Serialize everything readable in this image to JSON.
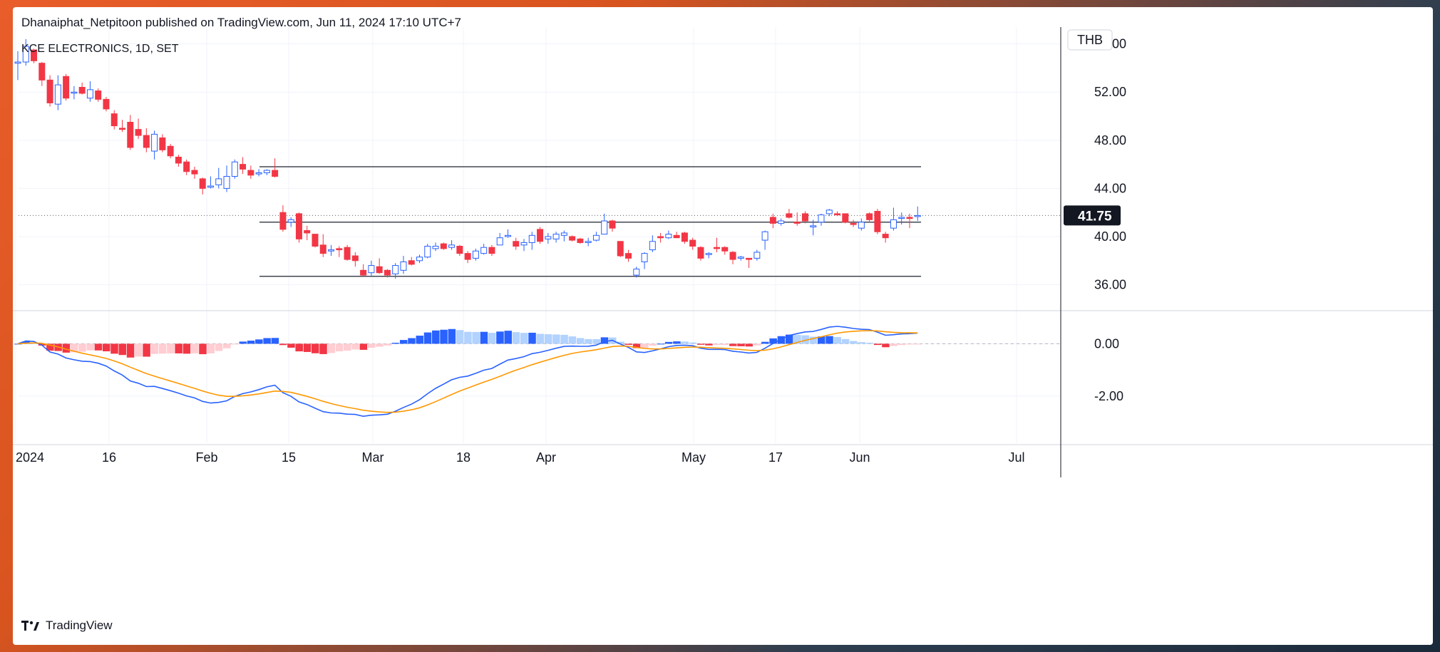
{
  "header": {
    "published_line": "Dhanaiphat_Netpitoon published on TradingView.com, Jun 11, 2024 17:10 UTC+7",
    "symbol_line": "KCE ELECTRONICS, 1D, SET"
  },
  "footer": {
    "brand": "TradingView",
    "logo_text": "17"
  },
  "chart_data": {
    "type": "candlestick",
    "symbol": "KCE ELECTRONICS",
    "interval": "1D",
    "exchange": "SET",
    "currency": "THB",
    "last_price": "41.75",
    "price_axis": {
      "ticks": [
        "56.00",
        "52.00",
        "48.00",
        "44.00",
        "40.00",
        "36.00"
      ],
      "range": [
        34.2,
        57.4
      ]
    },
    "x_axis": {
      "labels": [
        "2024",
        "16",
        "Feb",
        "15",
        "Mar",
        "18",
        "Apr",
        "May",
        "17",
        "Jun",
        "Jul"
      ]
    },
    "candles": [
      [
        54.4,
        55.4,
        53.0,
        54.5
      ],
      [
        54.5,
        56.4,
        54.2,
        55.8
      ],
      [
        55.5,
        55.6,
        54.4,
        54.6
      ],
      [
        54.4,
        54.5,
        52.5,
        53.0
      ],
      [
        53.0,
        53.4,
        50.8,
        51.1
      ],
      [
        51.0,
        53.4,
        50.5,
        52.6
      ],
      [
        53.3,
        53.5,
        51.3,
        51.5
      ],
      [
        52.0,
        52.5,
        51.4,
        52.0
      ],
      [
        52.4,
        52.8,
        51.8,
        51.9
      ],
      [
        51.5,
        52.9,
        51.2,
        52.2
      ],
      [
        52.1,
        52.3,
        51.2,
        51.4
      ],
      [
        51.4,
        51.6,
        50.4,
        50.6
      ],
      [
        50.2,
        50.5,
        48.9,
        49.2
      ],
      [
        49.0,
        49.7,
        48.7,
        48.9
      ],
      [
        49.5,
        50.1,
        47.2,
        47.4
      ],
      [
        48.9,
        49.8,
        48.1,
        48.4
      ],
      [
        48.4,
        49.0,
        47.0,
        47.4
      ],
      [
        47.1,
        48.8,
        46.4,
        48.5
      ],
      [
        48.2,
        48.5,
        47.0,
        47.2
      ],
      [
        47.5,
        47.7,
        46.5,
        46.7
      ],
      [
        46.6,
        46.8,
        45.8,
        46.1
      ],
      [
        46.2,
        46.4,
        45.1,
        45.4
      ],
      [
        45.5,
        45.8,
        44.8,
        45.2
      ],
      [
        44.8,
        44.9,
        43.5,
        44.0
      ],
      [
        44.1,
        45.0,
        44.0,
        44.2
      ],
      [
        44.3,
        45.7,
        44.0,
        44.8
      ],
      [
        44.0,
        45.9,
        43.7,
        45.0
      ],
      [
        45.0,
        46.4,
        44.8,
        46.2
      ],
      [
        46.0,
        46.6,
        45.2,
        45.6
      ],
      [
        45.5,
        45.9,
        44.8,
        45.1
      ],
      [
        45.2,
        45.6,
        45.0,
        45.3
      ],
      [
        45.3,
        45.6,
        45.1,
        45.5
      ],
      [
        45.5,
        46.5,
        44.9,
        45.0
      ],
      [
        42.0,
        42.6,
        40.4,
        40.6
      ],
      [
        41.2,
        41.6,
        40.8,
        41.4
      ],
      [
        41.9,
        42.0,
        39.5,
        39.8
      ],
      [
        40.5,
        40.9,
        39.7,
        40.3
      ],
      [
        40.2,
        40.2,
        39.1,
        39.2
      ],
      [
        39.3,
        40.2,
        38.3,
        38.6
      ],
      [
        38.8,
        39.3,
        38.4,
        38.9
      ],
      [
        39.0,
        39.2,
        38.3,
        38.9
      ],
      [
        39.1,
        39.3,
        38.0,
        38.1
      ],
      [
        38.4,
        38.7,
        37.5,
        38.0
      ],
      [
        37.2,
        37.7,
        36.7,
        36.8
      ],
      [
        37.0,
        38.0,
        36.7,
        37.6
      ],
      [
        37.5,
        38.2,
        36.9,
        37.0
      ],
      [
        37.2,
        37.3,
        36.6,
        36.8
      ],
      [
        36.9,
        37.8,
        36.5,
        37.6
      ],
      [
        37.2,
        38.4,
        36.9,
        37.9
      ],
      [
        38.0,
        38.3,
        37.6,
        37.7
      ],
      [
        38.0,
        38.5,
        37.8,
        38.3
      ],
      [
        38.3,
        39.4,
        38.2,
        39.2
      ],
      [
        39.0,
        39.5,
        38.8,
        39.2
      ],
      [
        39.4,
        39.5,
        38.9,
        39.0
      ],
      [
        39.1,
        39.7,
        38.9,
        39.3
      ],
      [
        39.2,
        39.3,
        38.4,
        38.6
      ],
      [
        38.6,
        38.8,
        37.8,
        38.1
      ],
      [
        38.2,
        39.0,
        38.0,
        38.8
      ],
      [
        38.6,
        39.4,
        38.5,
        39.1
      ],
      [
        39.1,
        39.3,
        38.4,
        38.6
      ],
      [
        39.3,
        40.3,
        39.3,
        39.9
      ],
      [
        40.0,
        40.6,
        39.9,
        40.1
      ],
      [
        39.6,
        39.9,
        38.9,
        39.2
      ],
      [
        39.3,
        39.8,
        38.8,
        39.5
      ],
      [
        39.5,
        40.4,
        38.9,
        40.1
      ],
      [
        40.6,
        40.8,
        39.4,
        39.6
      ],
      [
        39.8,
        40.3,
        39.4,
        40.0
      ],
      [
        39.8,
        40.4,
        39.5,
        40.2
      ],
      [
        40.1,
        40.5,
        39.6,
        40.3
      ],
      [
        40.0,
        40.1,
        39.6,
        39.7
      ],
      [
        39.8,
        39.9,
        39.4,
        39.5
      ],
      [
        39.5,
        39.9,
        39.2,
        39.6
      ],
      [
        39.7,
        40.4,
        39.6,
        40.1
      ],
      [
        40.2,
        41.9,
        40.2,
        41.3
      ],
      [
        41.3,
        41.4,
        40.4,
        40.7
      ],
      [
        39.6,
        39.6,
        38.3,
        38.4
      ],
      [
        38.6,
        38.9,
        37.9,
        38.2
      ],
      [
        36.8,
        37.5,
        36.6,
        37.3
      ],
      [
        37.9,
        38.7,
        37.3,
        38.6
      ],
      [
        38.9,
        40.1,
        38.7,
        39.6
      ],
      [
        40.0,
        40.3,
        39.5,
        39.9
      ],
      [
        39.9,
        40.5,
        39.8,
        40.2
      ],
      [
        40.1,
        40.4,
        39.9,
        39.9
      ],
      [
        40.3,
        40.4,
        39.4,
        39.6
      ],
      [
        39.7,
        39.9,
        38.9,
        39.2
      ],
      [
        39.1,
        39.2,
        38.0,
        38.2
      ],
      [
        38.5,
        38.7,
        38.2,
        38.6
      ],
      [
        39.1,
        39.9,
        38.7,
        39.0
      ],
      [
        39.1,
        39.2,
        38.5,
        38.8
      ],
      [
        38.7,
        38.8,
        37.7,
        38.1
      ],
      [
        38.2,
        38.4,
        38.0,
        38.3
      ],
      [
        38.2,
        38.2,
        37.4,
        38.1
      ],
      [
        38.2,
        38.9,
        38.0,
        38.7
      ],
      [
        39.7,
        40.5,
        38.9,
        40.4
      ],
      [
        41.6,
        41.9,
        40.7,
        41.1
      ],
      [
        41.1,
        41.5,
        40.9,
        41.3
      ],
      [
        41.9,
        42.3,
        41.5,
        41.6
      ],
      [
        41.2,
        42.0,
        40.9,
        41.1
      ],
      [
        41.9,
        42.1,
        41.1,
        41.3
      ],
      [
        40.8,
        41.4,
        40.1,
        40.9
      ],
      [
        41.2,
        41.9,
        40.9,
        41.8
      ],
      [
        41.9,
        42.3,
        41.7,
        42.2
      ],
      [
        41.9,
        42.1,
        41.7,
        41.8
      ],
      [
        41.9,
        41.9,
        41.1,
        41.2
      ],
      [
        41.1,
        41.4,
        40.8,
        41.0
      ],
      [
        40.7,
        41.5,
        40.5,
        41.2
      ],
      [
        41.9,
        42.0,
        41.2,
        41.4
      ],
      [
        42.1,
        42.3,
        40.2,
        40.4
      ],
      [
        40.2,
        40.4,
        39.5,
        39.9
      ],
      [
        40.7,
        42.4,
        40.5,
        41.4
      ],
      [
        41.6,
        42.0,
        41.0,
        41.6
      ],
      [
        41.6,
        41.9,
        40.7,
        41.5
      ],
      [
        41.7,
        42.5,
        41.3,
        41.75
      ]
    ],
    "horizontal_lines": [
      {
        "name": "resistance",
        "value": 45.8
      },
      {
        "name": "range-top",
        "value": 41.2
      },
      {
        "name": "range-bottom",
        "value": 36.7
      }
    ],
    "macd_axis": {
      "ticks": [
        "0.00",
        "-2.00"
      ],
      "range": [
        -3.8,
        1.1
      ]
    },
    "macd_hist_colors": {
      "pos_strong": "#2962ff",
      "pos_weak": "#b2d2ff",
      "neg_strong": "#f23645",
      "neg_weak": "#ffcdd2"
    },
    "series_colors": {
      "macd": "#2962ff",
      "signal": "#ff9800",
      "up": "#ffffff",
      "up_border": "#2962ff",
      "down": "#f23645"
    }
  }
}
